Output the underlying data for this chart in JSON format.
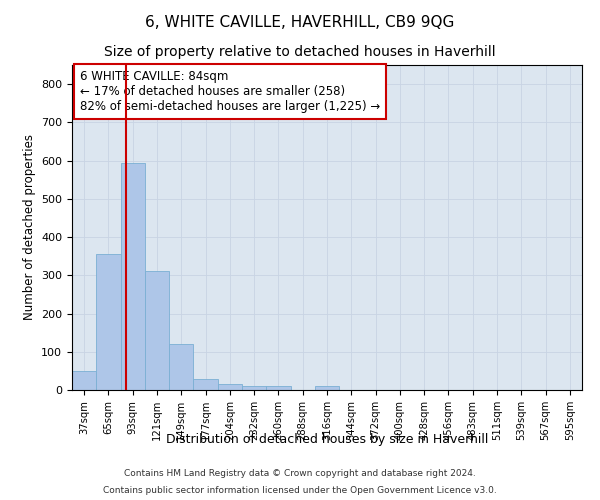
{
  "title": "6, WHITE CAVILLE, HAVERHILL, CB9 9QG",
  "subtitle": "Size of property relative to detached houses in Haverhill",
  "xlabel": "Distribution of detached houses by size in Haverhill",
  "ylabel": "Number of detached properties",
  "footnote1": "Contains HM Land Registry data © Crown copyright and database right 2024.",
  "footnote2": "Contains public sector information licensed under the Open Government Licence v3.0.",
  "annotation_line1": "6 WHITE CAVILLE: 84sqm",
  "annotation_line2": "← 17% of detached houses are smaller (258)",
  "annotation_line3": "82% of semi-detached houses are larger (1,225) →",
  "bar_categories": [
    "37sqm",
    "65sqm",
    "93sqm",
    "121sqm",
    "149sqm",
    "177sqm",
    "204sqm",
    "232sqm",
    "260sqm",
    "288sqm",
    "316sqm",
    "344sqm",
    "372sqm",
    "400sqm",
    "428sqm",
    "456sqm",
    "483sqm",
    "511sqm",
    "539sqm",
    "567sqm",
    "595sqm"
  ],
  "bar_values": [
    50,
    355,
    595,
    310,
    120,
    30,
    15,
    10,
    10,
    0,
    10,
    0,
    0,
    0,
    0,
    0,
    0,
    0,
    0,
    0,
    0
  ],
  "bar_color": "#aec6e8",
  "bar_edge_color": "#7aafd4",
  "grid_color": "#c8d4e4",
  "background_color": "#dce6f0",
  "vline_x": 1.72,
  "vline_color": "#cc0000",
  "ylim": [
    0,
    850
  ],
  "yticks": [
    0,
    100,
    200,
    300,
    400,
    500,
    600,
    700,
    800
  ],
  "title_fontsize": 11,
  "subtitle_fontsize": 10,
  "annotation_fontsize": 8.5
}
